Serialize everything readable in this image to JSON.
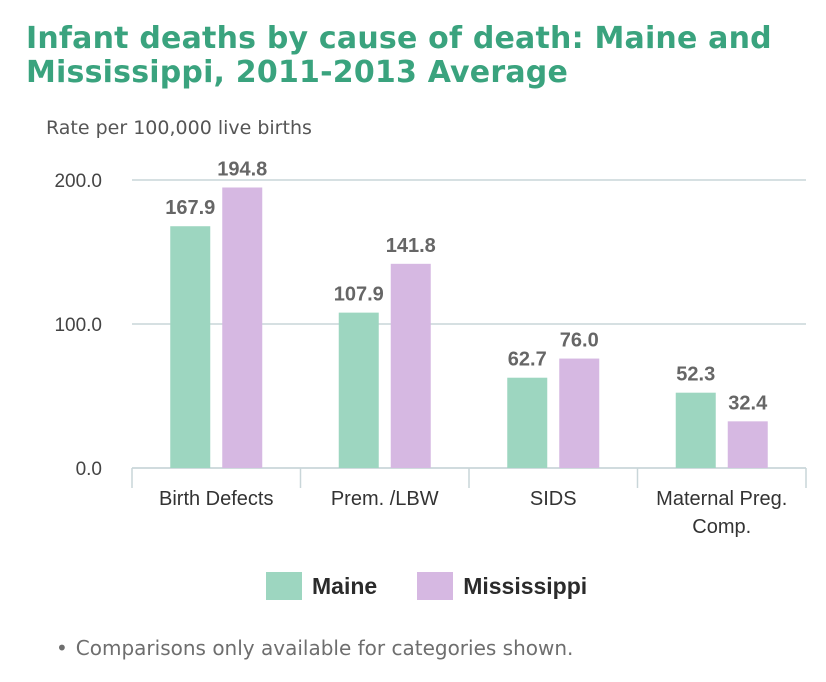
{
  "chart_data": {
    "type": "bar",
    "title": "Infant deaths by cause of death: Maine and Mississippi, 2011-2013 Average",
    "ylabel": "Rate per 100,000 live births",
    "xlabel": "",
    "categories": [
      "Birth Defects",
      "Prem. /LBW",
      "SIDS",
      "Maternal Preg. Comp."
    ],
    "series": [
      {
        "name": "Maine",
        "values": [
          167.9,
          107.9,
          62.7,
          52.3
        ],
        "labels": [
          "167.9",
          "107.9",
          "62.7",
          "52.3"
        ],
        "color": "#9dd6c0"
      },
      {
        "name": "Mississippi",
        "values": [
          194.8,
          141.8,
          76.0,
          32.4
        ],
        "labels": [
          "194.8",
          "141.8",
          "76.0",
          "32.4"
        ],
        "color": "#d6b8e2"
      }
    ],
    "ylim": [
      0,
      200
    ],
    "yticks": [
      0,
      100,
      200
    ],
    "ytick_labels": [
      "0.0",
      "100.0",
      "200.0"
    ],
    "grid": true,
    "legend_position": "bottom"
  },
  "footnote": {
    "bullet": "•",
    "text": "Comparisons only available for categories shown."
  }
}
